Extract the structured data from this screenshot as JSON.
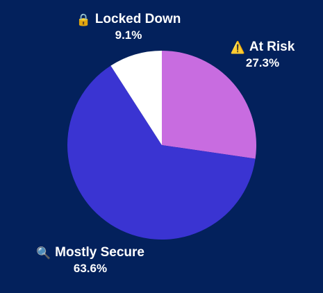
{
  "chart_data": {
    "type": "pie",
    "slices": [
      {
        "label": "At Risk",
        "value": 27.3,
        "percent_label": "27.3%",
        "color": "#c86ce0",
        "icon": "warning-icon",
        "icon_glyph": "⚠️"
      },
      {
        "label": "Mostly Secure",
        "value": 63.6,
        "percent_label": "63.6%",
        "color": "#3a34d2",
        "icon": "magnifying-glass-icon",
        "icon_glyph": "🔍"
      },
      {
        "label": "Locked Down",
        "value": 9.1,
        "percent_label": "9.1%",
        "color": "#ffffff",
        "icon": "padlock-icon",
        "icon_glyph": "🔒"
      }
    ],
    "start_angle_deg": 0,
    "direction": "clockwise",
    "background": "#03215c"
  }
}
